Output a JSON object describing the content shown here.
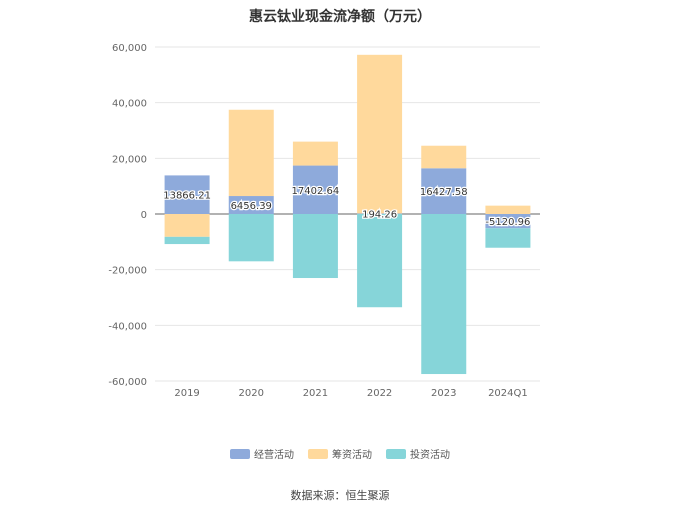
{
  "chart_data": {
    "type": "bar",
    "stacked": true,
    "title": "惠云钛业现金流净额（万元）",
    "categories": [
      "2019",
      "2020",
      "2021",
      "2022",
      "2023",
      "2024Q1"
    ],
    "series": [
      {
        "name": "经营活动",
        "color": "#8eaadb",
        "values": [
          13866.21,
          6456.39,
          17402.64,
          194.26,
          16427.58,
          -5120.96
        ],
        "labels": [
          "13866.21",
          "6456.39",
          "17402.64",
          "194.26",
          "16427.58",
          "-5120.96"
        ]
      },
      {
        "name": "筹资活动",
        "color": "#ffd99c",
        "values": [
          -8200,
          31000,
          8600,
          57000,
          8100,
          3000
        ]
      },
      {
        "name": "投资活动",
        "color": "#86d5d9",
        "values": [
          -2600,
          -17000,
          -23000,
          -33500,
          -57500,
          -7000
        ]
      }
    ],
    "ylim": [
      -60000,
      60000
    ],
    "yticks": [
      60000,
      40000,
      20000,
      0,
      -20000,
      -40000,
      -60000
    ],
    "ytick_labels": [
      "60,000",
      "40,000",
      "20,000",
      "0",
      "-20,000",
      "-40,000",
      "-60,000"
    ],
    "grid": true,
    "legend_position": "bottom"
  },
  "legend": {
    "items": [
      {
        "label": "经营活动",
        "color": "#8eaadb"
      },
      {
        "label": "筹资活动",
        "color": "#ffd99c"
      },
      {
        "label": "投资活动",
        "color": "#86d5d9"
      }
    ]
  },
  "source_text": "数据来源：恒生聚源"
}
